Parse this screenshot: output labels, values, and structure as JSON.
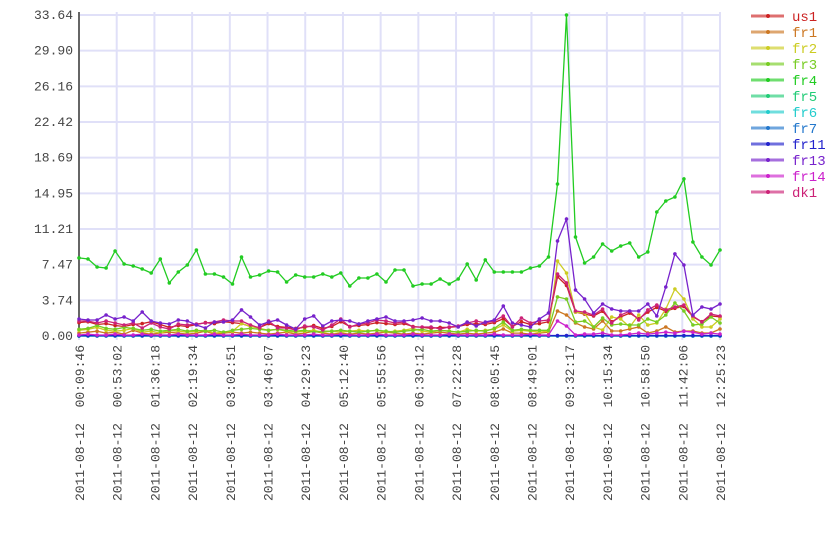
{
  "chart_data": {
    "type": "line",
    "title": "",
    "xlabel": "",
    "ylabel": "",
    "ylim": [
      0,
      33.64
    ],
    "y_ticks": [
      "0.00",
      "3.74",
      "7.47",
      "11.21",
      "14.95",
      "18.69",
      "22.42",
      "26.16",
      "29.90",
      "33.64"
    ],
    "x_ticks": [
      "2011-08-12 00:09:46",
      "2011-08-12 00:53:02",
      "2011-08-12 01:36:18",
      "2011-08-12 02:19:34",
      "2011-08-12 03:02:51",
      "2011-08-12 03:46:07",
      "2011-08-12 04:29:23",
      "2011-08-12 05:12:40",
      "2011-08-12 05:55:56",
      "2011-08-12 06:39:12",
      "2011-08-12 07:22:28",
      "2011-08-12 08:05:45",
      "2011-08-12 08:49:01",
      "2011-08-12 09:32:17",
      "2011-08-12 10:15:34",
      "2011-08-12 10:58:50",
      "2011-08-12 11:42:06",
      "2011-08-12 12:25:23"
    ],
    "grid": true,
    "legend_position": "right",
    "series": [
      {
        "name": "us1",
        "color": "#cc2222",
        "values": [
          1.4,
          1.5,
          1.2,
          1.3,
          1.1,
          1.0,
          1.2,
          1.3,
          1.5,
          1.2,
          0.9,
          1.1,
          1.0,
          1.2,
          1.4,
          1.3,
          1.5,
          1.4,
          1.3,
          1.0,
          0.9,
          1.3,
          1.0,
          0.9,
          0.8,
          0.9,
          1.1,
          0.8,
          1.0,
          1.5,
          1.0,
          1.1,
          1.2,
          1.4,
          1.3,
          1.2,
          1.3,
          1.0,
          0.9,
          0.8,
          0.9,
          0.9,
          1.0,
          1.2,
          1.3,
          1.2,
          1.4,
          1.8,
          1.0,
          1.5,
          1.2,
          1.3,
          1.5,
          6.2,
          5.3,
          2.5,
          2.3,
          2.1,
          2.6,
          1.5,
          2.0,
          2.4,
          1.8,
          2.5,
          3.0,
          2.6,
          2.9,
          3.1,
          2.0,
          1.5,
          2.1,
          2.0
        ]
      },
      {
        "name": "fr1",
        "color": "#cc7722",
        "values": [
          0.3,
          0.4,
          0.5,
          0.3,
          0.4,
          0.2,
          0.6,
          0.3,
          0.2,
          0.3,
          0.4,
          0.3,
          0.2,
          0.3,
          0.5,
          0.2,
          0.3,
          0.4,
          0.3,
          0.4,
          0.3,
          0.2,
          0.3,
          0.4,
          0.2,
          0.3,
          0.5,
          0.3,
          0.2,
          0.3,
          0.2,
          0.3,
          0.2,
          0.3,
          0.4,
          0.3,
          0.2,
          0.3,
          0.2,
          0.3,
          0.4,
          0.3,
          0.2,
          0.3,
          0.2,
          0.3,
          0.4,
          0.73,
          0.3,
          0.3,
          0.2,
          0.3,
          0.4,
          2.62,
          2.2,
          1.36,
          0.94,
          0.73,
          1.57,
          0.52,
          0.52,
          0.73,
          0.94,
          0.31,
          0.52,
          0.94,
          0.42,
          0.52,
          0.52,
          0.31,
          0.31,
          0.73
        ]
      },
      {
        "name": "fr2",
        "color": "#cccc22",
        "values": [
          0.6,
          0.7,
          0.9,
          0.6,
          0.5,
          0.6,
          0.8,
          0.4,
          0.5,
          0.3,
          0.6,
          0.5,
          0.4,
          0.5,
          0.6,
          0.3,
          0.4,
          0.5,
          1.3,
          1.0,
          0.8,
          0.6,
          0.7,
          0.5,
          0.4,
          0.5,
          0.6,
          0.4,
          0.5,
          0.4,
          0.5,
          0.6,
          0.5,
          0.6,
          0.4,
          0.5,
          0.6,
          0.8,
          0.5,
          0.4,
          0.6,
          0.5,
          0.4,
          0.7,
          0.5,
          0.6,
          0.7,
          1.15,
          0.5,
          0.6,
          0.5,
          0.4,
          0.5,
          7.86,
          6.6,
          2.5,
          2.4,
          0.94,
          0.63,
          1.99,
          1.78,
          0.94,
          2.2,
          1.15,
          1.36,
          2.83,
          4.93,
          3.88,
          1.78,
          0.94,
          0.94,
          1.78
        ]
      },
      {
        "name": "fr3",
        "color": "#77cc22",
        "values": [
          0.7,
          0.8,
          1.1,
          0.8,
          0.7,
          0.9,
          0.8,
          0.6,
          0.7,
          0.5,
          0.6,
          0.7,
          0.5,
          0.6,
          0.5,
          0.6,
          0.4,
          0.6,
          0.7,
          0.8,
          0.7,
          0.6,
          0.7,
          0.6,
          0.5,
          0.6,
          0.4,
          0.5,
          0.5,
          0.6,
          0.5,
          0.4,
          0.5,
          0.6,
          0.5,
          0.4,
          0.5,
          0.6,
          0.7,
          0.5,
          0.6,
          0.5,
          0.4,
          0.5,
          0.6,
          0.5,
          0.8,
          1.47,
          0.6,
          0.7,
          0.6,
          0.6,
          0.6,
          4.1,
          3.88,
          1.47,
          1.57,
          0.94,
          1.89,
          1.15,
          1.26,
          1.15,
          1.15,
          1.78,
          1.47,
          2.2,
          3.46,
          2.62,
          1.15,
          1.26,
          1.99,
          1.36
        ]
      },
      {
        "name": "fr4",
        "color": "#22cc22",
        "values": [
          8.18,
          8.07,
          7.23,
          7.13,
          8.91,
          7.55,
          7.34,
          7.02,
          6.6,
          8.07,
          5.56,
          6.71,
          7.44,
          9.01,
          6.5,
          6.5,
          6.18,
          5.45,
          8.28,
          6.18,
          6.39,
          6.81,
          6.71,
          5.66,
          6.39,
          6.18,
          6.18,
          6.5,
          6.18,
          6.6,
          5.24,
          6.08,
          6.08,
          6.5,
          5.66,
          6.92,
          6.92,
          5.24,
          5.45,
          5.45,
          5.97,
          5.45,
          5.97,
          7.55,
          5.87,
          7.97,
          6.71,
          6.71,
          6.71,
          6.71,
          7.13,
          7.34,
          8.28,
          15.93,
          33.64,
          10.38,
          7.65,
          8.28,
          9.64,
          8.91,
          9.43,
          9.75,
          8.28,
          8.81,
          13.0,
          14.15,
          14.57,
          16.46,
          9.85,
          8.28,
          7.44,
          9.01
        ]
      },
      {
        "name": "fr5",
        "color": "#22cc77",
        "values": [
          0,
          0,
          0,
          0,
          0,
          0,
          0,
          0,
          0,
          0,
          0,
          0,
          0,
          0,
          0,
          0,
          0,
          0,
          0,
          0,
          0,
          0,
          0,
          0,
          0,
          0,
          0,
          0,
          0,
          0,
          0,
          0,
          0,
          0,
          0,
          0,
          0,
          0,
          0,
          0,
          0,
          0,
          0,
          0,
          0,
          0,
          0,
          0,
          0,
          0,
          0,
          0,
          0,
          0,
          0,
          0,
          0,
          0,
          0,
          0,
          0,
          0,
          0,
          0,
          0,
          0,
          0,
          0,
          0,
          0,
          0,
          0
        ]
      },
      {
        "name": "fr6",
        "color": "#22cccc",
        "values": [
          0,
          0,
          0,
          0,
          0,
          0,
          0,
          0,
          0,
          0,
          0,
          0,
          0,
          0,
          0,
          0,
          0,
          0,
          0,
          0,
          0,
          0,
          0,
          0,
          0,
          0,
          0,
          0,
          0,
          0,
          0,
          0,
          0,
          0,
          0,
          0,
          0,
          0,
          0,
          0,
          0,
          0,
          0,
          0,
          0,
          0,
          0,
          0,
          0,
          0,
          0,
          0,
          0,
          0,
          0,
          0,
          0,
          0,
          0,
          0,
          0,
          0,
          0,
          0,
          0,
          0,
          0,
          0,
          0,
          0,
          0,
          0
        ]
      },
      {
        "name": "fr7",
        "color": "#2277cc",
        "values": [
          0,
          0,
          0,
          0,
          0,
          0,
          0,
          0,
          0,
          0,
          0,
          0,
          0,
          0,
          0,
          0,
          0,
          0,
          0,
          0,
          0,
          0,
          0,
          0,
          0,
          0,
          0,
          0,
          0,
          0,
          0,
          0,
          0,
          0,
          0,
          0,
          0,
          0,
          0,
          0,
          0,
          0,
          0,
          0,
          0,
          0,
          0,
          0,
          0,
          0,
          0,
          0,
          0,
          0,
          0,
          0,
          0,
          0,
          0,
          0,
          0,
          0,
          0,
          0,
          0,
          0,
          0,
          0,
          0,
          0,
          0,
          0
        ]
      },
      {
        "name": "fr11",
        "color": "#2222cc",
        "values": [
          0.05,
          0.05,
          0.05,
          0.05,
          0.05,
          0.05,
          0.05,
          0.05,
          0.05,
          0.05,
          0.05,
          0.05,
          0.05,
          0.05,
          0.05,
          0.05,
          0.05,
          0.05,
          0.05,
          0.05,
          0.05,
          0.05,
          0.05,
          0.05,
          0.05,
          0.05,
          0.05,
          0.05,
          0.05,
          0.05,
          0.05,
          0.05,
          0.05,
          0.05,
          0.05,
          0.05,
          0.05,
          0.05,
          0.05,
          0.05,
          0.05,
          0.05,
          0.05,
          0.05,
          0.05,
          0.05,
          0.05,
          0.05,
          0.05,
          0.05,
          0.05,
          0.05,
          0.05,
          0.05,
          0.05,
          0.05,
          0.05,
          0.05,
          0.05,
          0.05,
          0.05,
          0.05,
          0.05,
          0.05,
          0.05,
          0.05,
          0.05,
          0.05,
          0.05,
          0.05,
          0.05,
          0.05
        ]
      },
      {
        "name": "fr13",
        "color": "#7722cc",
        "values": [
          1.78,
          1.68,
          1.68,
          2.2,
          1.78,
          1.99,
          1.57,
          2.52,
          1.57,
          1.36,
          1.26,
          1.68,
          1.57,
          1.15,
          0.84,
          1.47,
          1.47,
          1.68,
          2.73,
          1.99,
          1.15,
          1.47,
          1.68,
          1.15,
          0.73,
          1.78,
          2.1,
          1.05,
          1.57,
          1.68,
          1.57,
          1.26,
          1.57,
          1.78,
          1.99,
          1.57,
          1.57,
          1.68,
          1.89,
          1.57,
          1.57,
          1.36,
          0.94,
          1.47,
          1.05,
          1.47,
          1.68,
          3.14,
          1.36,
          1.15,
          0.94,
          1.78,
          2.41,
          9.96,
          12.26,
          4.82,
          3.88,
          2.41,
          3.35,
          2.83,
          2.62,
          2.62,
          2.62,
          3.35,
          2.1,
          5.14,
          8.6,
          7.44,
          2.2,
          3.04,
          2.83,
          3.35
        ]
      },
      {
        "name": "fr14",
        "color": "#cc22cc",
        "values": [
          0.1,
          0.2,
          0.1,
          0.1,
          0.2,
          0.1,
          0.1,
          0.2,
          0.1,
          0.1,
          0.1,
          0.2,
          0.1,
          0.1,
          0.1,
          0.2,
          0.1,
          0.1,
          0.2,
          0.1,
          0.1,
          0.1,
          0.2,
          0.1,
          0.1,
          0.1,
          0.2,
          0.1,
          0.1,
          0.2,
          0.1,
          0.1,
          0.1,
          0.2,
          0.1,
          0.1,
          0.1,
          0.2,
          0.1,
          0.1,
          0.1,
          0.2,
          0.1,
          0.1,
          0.1,
          0.1,
          0.2,
          0.1,
          0.1,
          0.1,
          0.2,
          0.1,
          0.1,
          1.57,
          1.05,
          0.1,
          0.2,
          0.2,
          0.31,
          0.1,
          0.1,
          0.2,
          0.3,
          0.2,
          0.3,
          0.4,
          0.3,
          0.5,
          0.4,
          0.2,
          0.3,
          0.2
        ]
      },
      {
        "name": "dk1",
        "color": "#cc2277",
        "values": [
          1.57,
          1.57,
          1.36,
          1.57,
          1.36,
          1.15,
          1.36,
          0.84,
          1.36,
          0.94,
          0.73,
          1.26,
          1.15,
          1.26,
          1.36,
          1.47,
          1.68,
          1.57,
          1.57,
          1.15,
          0.84,
          1.57,
          0.84,
          0.84,
          0.63,
          1.05,
          0.94,
          0.63,
          1.15,
          1.78,
          0.94,
          1.26,
          1.36,
          1.68,
          1.57,
          1.36,
          1.47,
          0.94,
          0.94,
          0.94,
          0.73,
          0.94,
          1.05,
          1.36,
          1.57,
          1.36,
          1.57,
          2.1,
          0.94,
          1.89,
          1.36,
          1.57,
          1.68,
          6.5,
          5.56,
          2.62,
          2.5,
          2.2,
          2.83,
          1.36,
          2.2,
          2.6,
          1.68,
          2.73,
          3.25,
          2.73,
          3.04,
          3.25,
          2.1,
          1.47,
          2.3,
          2.1
        ]
      }
    ]
  }
}
